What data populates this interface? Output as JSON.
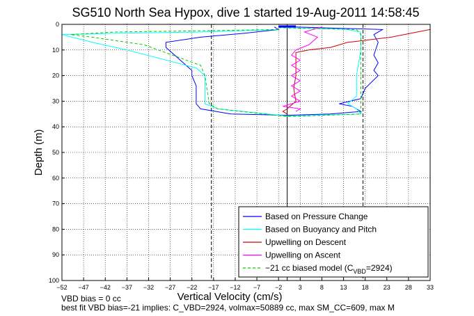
{
  "chart_data": {
    "type": "line",
    "title": "SG510 North Sea Hypox, dive 1 started 19-Aug-2011 14:58:45",
    "xlabel": "Vertical Velocity (cm/s)",
    "ylabel": "Depth (m)",
    "xlim": [
      -52,
      33
    ],
    "ylim": [
      0,
      100
    ],
    "y_reversed": true,
    "grid": true,
    "legend_position": "bottom-right",
    "x_ticks": [
      -52,
      -47,
      -42,
      -37,
      -32,
      -27,
      -22,
      -17,
      -12,
      -7,
      -2,
      3,
      8,
      13,
      18,
      23,
      28,
      33
    ],
    "y_ticks": [
      0,
      10,
      20,
      30,
      40,
      50,
      60,
      70,
      80,
      90,
      100
    ],
    "reference_lines": {
      "solid_x": 0,
      "dashed_x": [
        -17.5,
        17.5
      ]
    },
    "series": [
      {
        "name": "Based on Pressure Change",
        "color": "#0000ff",
        "style": "solid",
        "points": [
          [
            -2,
            1.0
          ],
          [
            0,
            1.0
          ],
          [
            2,
            1.0
          ],
          [
            22,
            2
          ],
          [
            20,
            4
          ],
          [
            21,
            7
          ],
          [
            20,
            12
          ],
          [
            21,
            15
          ],
          [
            20,
            18
          ],
          [
            21,
            20
          ],
          [
            18,
            25
          ],
          [
            17,
            29
          ],
          [
            12,
            31
          ],
          [
            15,
            32
          ],
          [
            17,
            34
          ],
          [
            10,
            35
          ],
          [
            0,
            35.5
          ],
          [
            -13,
            35
          ],
          [
            -20,
            33
          ],
          [
            -21,
            31
          ],
          [
            -21,
            24
          ],
          [
            -22,
            20
          ],
          [
            -22,
            18
          ],
          [
            -28,
            9
          ],
          [
            -28,
            7
          ],
          [
            -20,
            5
          ],
          [
            -10,
            3.5
          ],
          [
            -2,
            2
          ],
          [
            -3,
            1
          ]
        ]
      },
      {
        "name": "Based on Buoyancy and Pitch",
        "color": "#00ffff",
        "style": "solid",
        "points": [
          [
            -2,
            1.2
          ],
          [
            14,
            2
          ],
          [
            17,
            3
          ],
          [
            17,
            10
          ],
          [
            16,
            20
          ],
          [
            16,
            28
          ],
          [
            14,
            31
          ],
          [
            16,
            33
          ],
          [
            17,
            35
          ],
          [
            0,
            35.8
          ],
          [
            -16,
            33
          ],
          [
            -19,
            31
          ],
          [
            -19,
            20
          ],
          [
            -21,
            17
          ],
          [
            -37,
            10
          ],
          [
            -45,
            7
          ],
          [
            -52,
            4
          ],
          [
            -40,
            3.5
          ],
          [
            -20,
            3
          ],
          [
            -2,
            2
          ]
        ]
      },
      {
        "name": "Upwelling on Descent",
        "color": "#cc0000",
        "style": "solid",
        "points": [
          [
            33,
            2
          ],
          [
            30,
            3
          ],
          [
            24,
            5
          ],
          [
            14,
            7
          ],
          [
            10,
            9
          ],
          [
            5,
            10
          ],
          [
            2,
            11
          ],
          [
            2,
            20
          ],
          [
            1.5,
            25
          ],
          [
            2,
            30
          ],
          [
            0,
            33
          ],
          [
            -1,
            34
          ],
          [
            0,
            35
          ]
        ]
      },
      {
        "name": "Upwelling on Ascent",
        "color": "#ff00ff",
        "style": "solid",
        "points": [
          [
            2,
            34
          ],
          [
            3,
            33
          ],
          [
            -1,
            32
          ],
          [
            3,
            30
          ],
          [
            1,
            28
          ],
          [
            3,
            26
          ],
          [
            1,
            24
          ],
          [
            3,
            22
          ],
          [
            1,
            20
          ],
          [
            3,
            18
          ],
          [
            1,
            16
          ],
          [
            3,
            14
          ],
          [
            1,
            12
          ],
          [
            2,
            10
          ],
          [
            5,
            8
          ],
          [
            7,
            5
          ],
          [
            4,
            3
          ],
          [
            8,
            1
          ]
        ]
      },
      {
        "name": "-21 cc biased model (C_VBD=2924)",
        "color": "#00cc00",
        "style": "dashed",
        "points": [
          [
            -2,
            1.3
          ],
          [
            16,
            2
          ],
          [
            17,
            4
          ],
          [
            17,
            10
          ],
          [
            17,
            20
          ],
          [
            17,
            30
          ],
          [
            17,
            35
          ],
          [
            0,
            36
          ],
          [
            -16,
            33
          ],
          [
            -18,
            31
          ],
          [
            -19,
            20
          ],
          [
            -20,
            16
          ],
          [
            -33,
            8
          ],
          [
            -45,
            5
          ],
          [
            -50,
            4
          ],
          [
            -40,
            3
          ],
          [
            -20,
            2.5
          ],
          [
            -2,
            2
          ]
        ]
      }
    ]
  },
  "legend_label_parts": {
    "vbd_prefix": "−21 cc biased model (C",
    "vbd_sub": "VBD",
    "vbd_suffix": "=2924)"
  },
  "footnotes": {
    "bias_line": "VBD bias = 0 cc",
    "fit_line": "best fit VBD bias=-21 implies: C_VBD=2924, volmax=50889 cc, max SM_CC=609, max M"
  }
}
